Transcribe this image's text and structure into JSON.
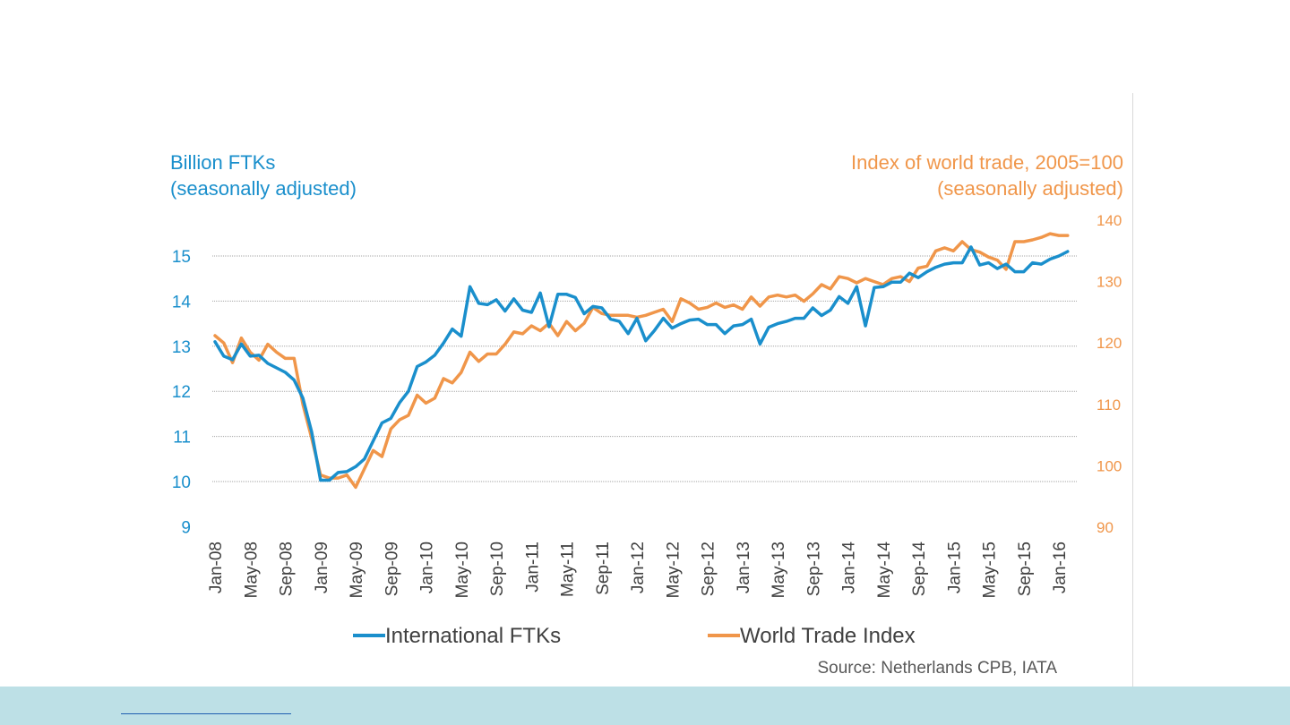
{
  "chart_data": {
    "type": "line",
    "left_axis_title": [
      "Billion FTKs",
      "(seasonally adjusted)"
    ],
    "right_axis_title": [
      "Index of world trade, 2005=100",
      "(seasonally adjusted)"
    ],
    "y_left": {
      "ticks": [
        9,
        10,
        11,
        12,
        13,
        14,
        15
      ],
      "range": [
        9,
        16
      ]
    },
    "y_right": {
      "ticks": [
        90,
        100,
        110,
        120,
        130,
        140
      ],
      "range": [
        90,
        140
      ]
    },
    "x_tick_labels": [
      "Jan-08",
      "May-08",
      "Sep-08",
      "Jan-09",
      "May-09",
      "Sep-09",
      "Jan-10",
      "May-10",
      "Sep-10",
      "Jan-11",
      "May-11",
      "Sep-11",
      "Jan-12",
      "May-12",
      "Sep-12",
      "Jan-13",
      "May-13",
      "Sep-13",
      "Jan-14",
      "May-14",
      "Sep-14",
      "Jan-15",
      "May-15",
      "Sep-15",
      "Jan-16"
    ],
    "grid": "horizontal",
    "legend_position": "bottom",
    "series": [
      {
        "name": "International FTKs",
        "axis": "left",
        "color": "#1a8fcc",
        "start": "Jan-08",
        "values": [
          13.1,
          12.78,
          12.7,
          13.05,
          12.78,
          12.8,
          12.62,
          12.52,
          12.42,
          12.25,
          11.85,
          11.1,
          10.03,
          10.03,
          10.2,
          10.22,
          10.33,
          10.5,
          10.9,
          11.3,
          11.4,
          11.75,
          12.0,
          12.55,
          12.65,
          12.8,
          13.07,
          13.38,
          13.22,
          14.32,
          13.95,
          13.92,
          14.03,
          13.78,
          14.05,
          13.8,
          13.75,
          14.18,
          13.43,
          14.15,
          14.15,
          14.08,
          13.72,
          13.88,
          13.85,
          13.6,
          13.55,
          13.28,
          13.62,
          13.12,
          13.35,
          13.62,
          13.4,
          13.5,
          13.58,
          13.6,
          13.48,
          13.48,
          13.28,
          13.45,
          13.48,
          13.6,
          13.05,
          13.42,
          13.5,
          13.55,
          13.62,
          13.62,
          13.85,
          13.68,
          13.8,
          14.1,
          13.95,
          14.32,
          13.45,
          14.3,
          14.32,
          14.42,
          14.42,
          14.62,
          14.52,
          14.65,
          14.75,
          14.82,
          14.85,
          14.85,
          15.2,
          14.8,
          14.85,
          14.72,
          14.82,
          14.65,
          14.65,
          14.85,
          14.82,
          14.93,
          15.0,
          15.1
        ]
      },
      {
        "name": "World Trade Index",
        "axis": "right",
        "color": "#f0964a",
        "start": "Jan-08",
        "values": [
          121.2,
          120.0,
          116.8,
          120.8,
          118.5,
          117.2,
          119.8,
          118.5,
          117.5,
          117.5,
          110.0,
          104.5,
          98.5,
          98.0,
          98.0,
          98.5,
          96.5,
          99.5,
          102.5,
          101.5,
          106.0,
          107.5,
          108.2,
          111.5,
          110.2,
          111.0,
          114.2,
          113.5,
          115.2,
          118.5,
          117.0,
          118.2,
          118.2,
          119.8,
          121.8,
          121.5,
          122.8,
          122.0,
          123.2,
          121.2,
          123.5,
          122.0,
          123.2,
          125.8,
          124.8,
          124.5,
          124.5,
          124.5,
          124.2,
          124.5,
          125.0,
          125.5,
          123.5,
          127.2,
          126.5,
          125.5,
          125.8,
          126.5,
          125.8,
          126.2,
          125.5,
          127.5,
          126.0,
          127.5,
          127.8,
          127.5,
          127.8,
          126.8,
          128.0,
          129.5,
          128.8,
          130.8,
          130.5,
          129.8,
          130.5,
          130.0,
          129.5,
          130.5,
          130.8,
          130.0,
          132.2,
          132.5,
          135.0,
          135.5,
          135.0,
          136.5,
          135.2,
          134.8,
          134.0,
          133.5,
          132.0,
          136.5,
          136.5,
          136.8,
          137.2,
          137.8,
          137.5,
          137.5
        ]
      }
    ],
    "source": "Source: Netherlands CPB, IATA"
  }
}
